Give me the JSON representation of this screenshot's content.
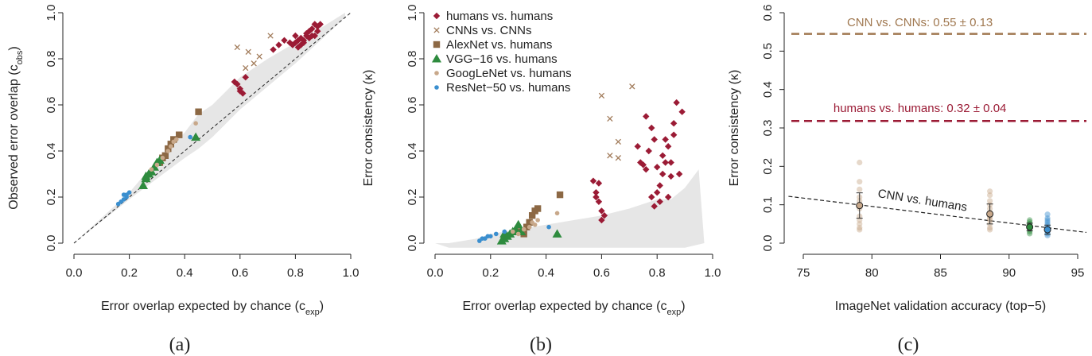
{
  "colors": {
    "humans": "#9b1b35",
    "cnns": "#a17b5a",
    "alexnet": "#8c6844",
    "vgg": "#2e8b3e",
    "googlenet": "#c8a88a",
    "resnet": "#3b8fcf",
    "band": "#e6e6e6",
    "cnn_line": "#a07850",
    "human_line": "#9b1b35"
  },
  "chart_data": [
    {
      "id": "a",
      "type": "scatter",
      "panel_label": "(a)",
      "xlabel": "Error overlap expected by chance (c",
      "xlabel_sub": "exp",
      "xlabel_end": ")",
      "ylabel": "Observed error overlap (c",
      "ylabel_sub": "obs",
      "ylabel_end": ")",
      "xlim": [
        0,
        1
      ],
      "ylim": [
        0,
        1
      ],
      "xticks": [
        "0.0",
        "0.2",
        "0.4",
        "0.6",
        "0.8",
        "1.0"
      ],
      "yticks": [
        "0.0",
        "0.2",
        "0.4",
        "0.6",
        "0.8",
        "1.0"
      ],
      "diagonal": true,
      "band_upper": [
        [
          0,
          0
        ],
        [
          0.2,
          0.22
        ],
        [
          0.3,
          0.36
        ],
        [
          0.4,
          0.48
        ],
        [
          0.45,
          0.56
        ],
        [
          0.5,
          0.6
        ],
        [
          0.55,
          0.66
        ],
        [
          0.6,
          0.72
        ],
        [
          0.7,
          0.8
        ],
        [
          0.8,
          0.87
        ],
        [
          0.9,
          0.94
        ],
        [
          0.98,
          1.0
        ]
      ],
      "band_lower": [
        [
          0,
          0
        ],
        [
          0.2,
          0.19
        ],
        [
          0.3,
          0.28
        ],
        [
          0.4,
          0.37
        ],
        [
          0.45,
          0.41
        ],
        [
          0.5,
          0.46
        ],
        [
          0.55,
          0.52
        ],
        [
          0.6,
          0.58
        ],
        [
          0.7,
          0.68
        ],
        [
          0.8,
          0.78
        ],
        [
          0.9,
          0.89
        ],
        [
          0.98,
          0.98
        ]
      ],
      "series": [
        {
          "name": "humans vs. humans",
          "marker": "diamond",
          "color_key": "humans",
          "points": [
            [
              0.59,
              0.69
            ],
            [
              0.6,
              0.67
            ],
            [
              0.61,
              0.65
            ],
            [
              0.6,
              0.66
            ],
            [
              0.58,
              0.7
            ],
            [
              0.62,
              0.72
            ],
            [
              0.72,
              0.84
            ],
            [
              0.74,
              0.86
            ],
            [
              0.76,
              0.88
            ],
            [
              0.78,
              0.87
            ],
            [
              0.8,
              0.9
            ],
            [
              0.81,
              0.88
            ],
            [
              0.82,
              0.86
            ],
            [
              0.83,
              0.88
            ],
            [
              0.84,
              0.9
            ],
            [
              0.85,
              0.92
            ],
            [
              0.86,
              0.93
            ],
            [
              0.87,
              0.95
            ],
            [
              0.88,
              0.94
            ],
            [
              0.89,
              0.95
            ],
            [
              0.83,
              0.87
            ],
            [
              0.85,
              0.89
            ],
            [
              0.87,
              0.9
            ],
            [
              0.8,
              0.87
            ],
            [
              0.82,
              0.89
            ],
            [
              0.84,
              0.91
            ],
            [
              0.86,
              0.9
            ],
            [
              0.88,
              0.92
            ],
            [
              0.79,
              0.86
            ],
            [
              0.81,
              0.85
            ]
          ]
        },
        {
          "name": "CNNs vs. CNNs",
          "marker": "x",
          "color_key": "cnns",
          "points": [
            [
              0.59,
              0.85
            ],
            [
              0.63,
              0.83
            ],
            [
              0.65,
              0.78
            ],
            [
              0.67,
              0.81
            ],
            [
              0.71,
              0.9
            ],
            [
              0.62,
              0.76
            ]
          ]
        },
        {
          "name": "AlexNet vs. humans",
          "marker": "square",
          "color_key": "alexnet",
          "points": [
            [
              0.45,
              0.57
            ],
            [
              0.38,
              0.47
            ],
            [
              0.36,
              0.45
            ],
            [
              0.34,
              0.41
            ],
            [
              0.33,
              0.38
            ],
            [
              0.31,
              0.35
            ],
            [
              0.35,
              0.43
            ],
            [
              0.32,
              0.37
            ]
          ]
        },
        {
          "name": "VGG-16 vs. humans",
          "marker": "triangle",
          "color_key": "vgg",
          "points": [
            [
              0.25,
              0.25
            ],
            [
              0.26,
              0.28
            ],
            [
              0.27,
              0.3
            ],
            [
              0.28,
              0.31
            ],
            [
              0.29,
              0.33
            ],
            [
              0.3,
              0.35
            ],
            [
              0.31,
              0.36
            ],
            [
              0.26,
              0.29
            ],
            [
              0.44,
              0.46
            ]
          ]
        },
        {
          "name": "GoogLeNet vs. humans",
          "marker": "dot",
          "color_key": "googlenet",
          "points": [
            [
              0.44,
              0.52
            ],
            [
              0.37,
              0.45
            ],
            [
              0.35,
              0.42
            ],
            [
              0.34,
              0.4
            ],
            [
              0.32,
              0.37
            ],
            [
              0.3,
              0.34
            ],
            [
              0.28,
              0.32
            ],
            [
              0.36,
              0.44
            ]
          ]
        },
        {
          "name": "ResNet-50 vs. humans",
          "marker": "dot",
          "color_key": "resnet",
          "points": [
            [
              0.16,
              0.17
            ],
            [
              0.17,
              0.18
            ],
            [
              0.18,
              0.19
            ],
            [
              0.19,
              0.2
            ],
            [
              0.18,
              0.21
            ],
            [
              0.19,
              0.21
            ],
            [
              0.42,
              0.46
            ],
            [
              0.2,
              0.22
            ]
          ]
        }
      ]
    },
    {
      "id": "b",
      "type": "scatter",
      "panel_label": "(b)",
      "xlabel": "Error overlap expected by chance (c",
      "xlabel_sub": "exp",
      "xlabel_end": ")",
      "ylabel": "Error consistency (κ)",
      "xlim": [
        0,
        1
      ],
      "ylim": [
        0,
        1
      ],
      "xticks": [
        "0.0",
        "0.2",
        "0.4",
        "0.6",
        "0.8",
        "1.0"
      ],
      "yticks": [
        "0.0",
        "0.2",
        "0.4",
        "0.6",
        "0.8",
        "1.0"
      ],
      "band_upper": [
        [
          0,
          0
        ],
        [
          0.05,
          0.0
        ],
        [
          0.15,
          0.02
        ],
        [
          0.2,
          0.04
        ],
        [
          0.3,
          0.06
        ],
        [
          0.4,
          0.08
        ],
        [
          0.5,
          0.1
        ],
        [
          0.6,
          0.12
        ],
        [
          0.7,
          0.15
        ],
        [
          0.8,
          0.19
        ],
        [
          0.85,
          0.19
        ],
        [
          0.9,
          0.24
        ],
        [
          0.95,
          0.32
        ],
        [
          0.97,
          0.0
        ]
      ],
      "band_lower": [
        [
          0,
          0
        ],
        [
          0.05,
          -0.02
        ],
        [
          0.15,
          -0.02
        ],
        [
          0.3,
          -0.02
        ],
        [
          0.5,
          -0.02
        ],
        [
          0.7,
          -0.02
        ],
        [
          0.9,
          -0.02
        ],
        [
          0.97,
          0.0
        ]
      ],
      "legend": [
        "humans vs. humans",
        "CNNs vs. CNNs",
        "AlexNet vs. humans",
        "VGG−16 vs. humans",
        "GoogLeNet vs. humans",
        "ResNet−50 vs. humans"
      ],
      "series": [
        {
          "name": "humans vs. humans",
          "marker": "diamond",
          "color_key": "humans",
          "points": [
            [
              0.57,
              0.27
            ],
            [
              0.58,
              0.2
            ],
            [
              0.59,
              0.18
            ],
            [
              0.6,
              0.14
            ],
            [
              0.61,
              0.12
            ],
            [
              0.58,
              0.22
            ],
            [
              0.59,
              0.26
            ],
            [
              0.6,
              0.1
            ],
            [
              0.73,
              0.42
            ],
            [
              0.74,
              0.35
            ],
            [
              0.75,
              0.34
            ],
            [
              0.76,
              0.32
            ],
            [
              0.77,
              0.4
            ],
            [
              0.78,
              0.5
            ],
            [
              0.79,
              0.45
            ],
            [
              0.8,
              0.33
            ],
            [
              0.81,
              0.25
            ],
            [
              0.82,
              0.38
            ],
            [
              0.83,
              0.35
            ],
            [
              0.84,
              0.42
            ],
            [
              0.85,
              0.29
            ],
            [
              0.86,
              0.47
            ],
            [
              0.87,
              0.61
            ],
            [
              0.88,
              0.3
            ],
            [
              0.89,
              0.57
            ],
            [
              0.78,
              0.2
            ],
            [
              0.79,
              0.16
            ],
            [
              0.8,
              0.22
            ],
            [
              0.81,
              0.18
            ],
            [
              0.82,
              0.3
            ],
            [
              0.76,
              0.55
            ],
            [
              0.83,
              0.45
            ],
            [
              0.85,
              0.35
            ],
            [
              0.86,
              0.52
            ],
            [
              0.84,
              0.2
            ]
          ]
        },
        {
          "name": "CNNs vs. CNNs",
          "marker": "x",
          "color_key": "cnns",
          "points": [
            [
              0.6,
              0.64
            ],
            [
              0.63,
              0.54
            ],
            [
              0.66,
              0.44
            ],
            [
              0.71,
              0.68
            ],
            [
              0.63,
              0.38
            ],
            [
              0.66,
              0.37
            ]
          ]
        },
        {
          "name": "AlexNet vs. humans",
          "marker": "square",
          "color_key": "alexnet",
          "points": [
            [
              0.45,
              0.21
            ],
            [
              0.37,
              0.15
            ],
            [
              0.35,
              0.12
            ],
            [
              0.34,
              0.09
            ],
            [
              0.33,
              0.07
            ],
            [
              0.31,
              0.05
            ],
            [
              0.36,
              0.14
            ],
            [
              0.32,
              0.04
            ]
          ]
        },
        {
          "name": "VGG-16 vs. humans",
          "marker": "triangle",
          "color_key": "vgg",
          "points": [
            [
              0.25,
              0.02
            ],
            [
              0.26,
              0.03
            ],
            [
              0.27,
              0.04
            ],
            [
              0.28,
              0.05
            ],
            [
              0.29,
              0.06
            ],
            [
              0.3,
              0.08
            ],
            [
              0.24,
              0.01
            ],
            [
              0.25,
              0.04
            ],
            [
              0.44,
              0.04
            ],
            [
              0.31,
              0.05
            ]
          ]
        },
        {
          "name": "GoogLeNet vs. humans",
          "marker": "dot",
          "color_key": "googlenet",
          "points": [
            [
              0.44,
              0.13
            ],
            [
              0.37,
              0.1
            ],
            [
              0.35,
              0.09
            ],
            [
              0.34,
              0.07
            ],
            [
              0.32,
              0.06
            ],
            [
              0.3,
              0.04
            ],
            [
              0.28,
              0.05
            ],
            [
              0.36,
              0.08
            ]
          ]
        },
        {
          "name": "ResNet-50 vs. humans",
          "marker": "dot",
          "color_key": "resnet",
          "points": [
            [
              0.16,
              0.01
            ],
            [
              0.17,
              0.02
            ],
            [
              0.18,
              0.02
            ],
            [
              0.19,
              0.03
            ],
            [
              0.2,
              0.03
            ],
            [
              0.22,
              0.04
            ],
            [
              0.41,
              0.07
            ],
            [
              0.25,
              0.05
            ]
          ]
        }
      ]
    },
    {
      "id": "c",
      "type": "scatter",
      "panel_label": "(c)",
      "xlabel": "ImageNet validation accuracy (top−5)",
      "ylabel": "Error consistency (κ)",
      "xlim": [
        74.5,
        96
      ],
      "ylim": [
        0,
        0.6
      ],
      "xticks": [
        "75",
        "80",
        "85",
        "90",
        "95"
      ],
      "yticks": [
        "0.0",
        "0.1",
        "0.2",
        "0.3",
        "0.4",
        "0.5",
        "0.6"
      ],
      "hlines": [
        {
          "y": 0.545,
          "label": "CNN vs. CNNs: 0.55 ± 0.13",
          "color_key": "cnn_line",
          "label_x": 83.5,
          "label_y": 0.575
        },
        {
          "y": 0.318,
          "label": "humans vs. humans: 0.32 ± 0.04",
          "color_key": "human_line",
          "label_x": 83.5,
          "label_y": 0.352
        }
      ],
      "trend": {
        "label": "CNN vs. humans",
        "x": [
          74.5,
          96
        ],
        "y": [
          0.122,
          0.028
        ],
        "label_x": 80.4,
        "label_y": 0.12
      },
      "groups": [
        {
          "name": "AlexNet",
          "x": 79.1,
          "mean": 0.098,
          "err": 0.033,
          "color_key": "googlenet",
          "points": [
            0.21,
            0.16,
            0.14,
            0.12,
            0.11,
            0.09,
            0.07,
            0.06,
            0.05,
            0.04,
            0.035,
            0.1
          ]
        },
        {
          "name": "VGG-16",
          "x": 88.6,
          "mean": 0.076,
          "err": 0.026,
          "color_key": "googlenet",
          "points": [
            0.135,
            0.125,
            0.11,
            0.1,
            0.09,
            0.08,
            0.07,
            0.06,
            0.05,
            0.04,
            0.035,
            0.065
          ]
        },
        {
          "name": "GoogLeNet",
          "x": 91.5,
          "mean": 0.042,
          "err": 0.01,
          "color_key": "vgg",
          "points": [
            0.06,
            0.055,
            0.05,
            0.045,
            0.04,
            0.035,
            0.03,
            0.025,
            0.05,
            0.04
          ]
        },
        {
          "name": "ResNet-50",
          "x": 92.8,
          "mean": 0.035,
          "err": 0.012,
          "color_key": "resnet",
          "points": [
            0.075,
            0.065,
            0.055,
            0.05,
            0.045,
            0.04,
            0.035,
            0.03,
            0.025,
            0.02,
            0.06,
            0.03
          ]
        }
      ]
    }
  ]
}
